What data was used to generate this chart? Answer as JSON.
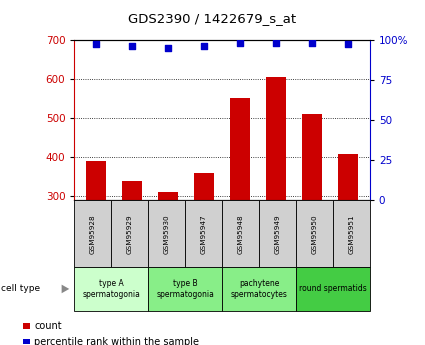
{
  "title": "GDS2390 / 1422679_s_at",
  "samples": [
    "GSM95928",
    "GSM95929",
    "GSM95930",
    "GSM95947",
    "GSM95948",
    "GSM95949",
    "GSM95950",
    "GSM95951"
  ],
  "counts": [
    390,
    340,
    310,
    360,
    550,
    605,
    510,
    408
  ],
  "percentile_ranks": [
    97,
    96,
    95,
    96,
    98,
    98,
    98,
    97
  ],
  "ylim_left": [
    290,
    700
  ],
  "ylim_right": [
    0,
    100
  ],
  "yticks_left": [
    300,
    400,
    500,
    600,
    700
  ],
  "yticks_right": [
    0,
    25,
    50,
    75,
    100
  ],
  "bar_color": "#cc0000",
  "dot_color": "#0000cc",
  "bar_width": 0.55,
  "cell_types": [
    {
      "label": "type A\nspermatogonia",
      "start": 0,
      "end": 2,
      "color": "#ccffcc"
    },
    {
      "label": "type B\nspermatogonia",
      "start": 2,
      "end": 4,
      "color": "#88ee88"
    },
    {
      "label": "pachytene\nspermatocytes",
      "start": 4,
      "end": 6,
      "color": "#88ee88"
    },
    {
      "label": "round spermatids",
      "start": 6,
      "end": 8,
      "color": "#44cc44"
    }
  ],
  "legend_count_color": "#cc0000",
  "legend_pct_color": "#0000cc",
  "grid_linestyle": ":",
  "grid_color": "#000000",
  "background_color": "#ffffff",
  "sample_bg_color": "#d0d0d0"
}
